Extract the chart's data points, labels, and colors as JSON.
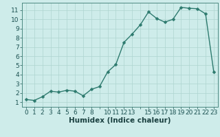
{
  "x": [
    0,
    1,
    2,
    3,
    4,
    5,
    6,
    7,
    8,
    9,
    10,
    11,
    12,
    13,
    14,
    15,
    16,
    17,
    18,
    19,
    20,
    21,
    22,
    23
  ],
  "y": [
    1.3,
    1.2,
    1.6,
    2.2,
    2.1,
    2.3,
    2.2,
    1.7,
    2.4,
    2.7,
    4.3,
    5.1,
    7.5,
    8.4,
    9.4,
    10.8,
    10.1,
    9.7,
    10.0,
    11.3,
    11.2,
    11.15,
    10.6,
    4.3
  ],
  "xlabel": "Humidex (Indice chaleur)",
  "xtick_labels": [
    "0",
    "1",
    "2",
    "3",
    "4",
    "5",
    "6",
    "7",
    "8",
    "",
    "10",
    "11",
    "12",
    "13",
    "",
    "15",
    "16",
    "17",
    "18",
    "19",
    "20",
    "21",
    "22",
    "23"
  ],
  "yticks": [
    1,
    2,
    3,
    4,
    5,
    6,
    7,
    8,
    9,
    10,
    11
  ],
  "ylim": [
    0.5,
    11.8
  ],
  "xlim": [
    -0.5,
    23.5
  ],
  "line_color": "#2d7a6e",
  "marker_color": "#2d7a6e",
  "bg_color": "#ceecea",
  "grid_color": "#aed4d0",
  "axis_color": "#4a8880",
  "tick_label_color": "#1a5050",
  "xlabel_color": "#1a4040",
  "xlabel_fontsize": 7.5,
  "tick_fontsize": 6.5,
  "line_width": 1.0,
  "marker_size": 2.5
}
